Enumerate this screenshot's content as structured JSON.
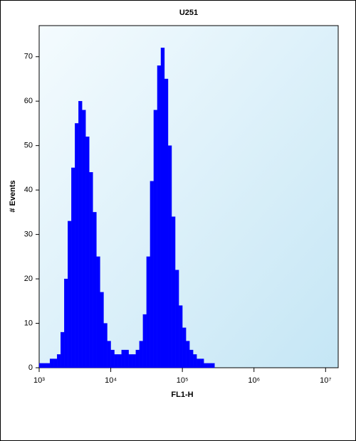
{
  "chart_data": {
    "type": "histogram",
    "title": "U251",
    "x_label": "FL1-H",
    "y_label": "# Events",
    "color": "#0000ff",
    "log_x": true,
    "bins": [
      1000,
      1122,
      1259,
      1413,
      1585,
      1778,
      1995,
      2239,
      2512,
      2818,
      3162,
      3548,
      3981,
      4467,
      5012,
      5623,
      6310,
      7079,
      7943,
      8913,
      10000,
      11220,
      12590,
      14130,
      15850,
      17780,
      19950,
      22390,
      25120,
      28180,
      31620,
      35480,
      39810,
      44670,
      50120,
      56230,
      63100,
      70790,
      79430,
      89130,
      100000,
      112200,
      125900,
      141300,
      158500,
      177800,
      199500,
      223900,
      251200,
      281800,
      316200,
      354800,
      398100,
      446700,
      501200,
      562300,
      631000,
      707900,
      794300,
      891300,
      1000000
    ],
    "values": [
      1,
      1,
      1,
      2,
      2,
      3,
      8,
      20,
      33,
      45,
      55,
      60,
      58,
      52,
      44,
      35,
      25,
      17,
      10,
      6,
      4,
      3,
      3,
      4,
      4,
      3,
      3,
      4,
      6,
      12,
      25,
      42,
      58,
      68,
      72,
      65,
      50,
      34,
      22,
      14,
      9,
      6,
      4,
      3,
      2,
      2,
      1,
      1,
      1,
      0,
      0,
      0,
      0,
      0,
      0,
      0,
      0,
      0,
      0,
      0
    ],
    "xlim": [
      1000,
      15000000
    ],
    "ylim": [
      0,
      77
    ],
    "xticks": [
      {
        "value": 1000,
        "label": "10³"
      },
      {
        "value": 10000,
        "label": "10⁴"
      },
      {
        "value": 100000,
        "label": "10⁵"
      },
      {
        "value": 1000000,
        "label": "10⁶"
      },
      {
        "value": 10000000,
        "label": "10⁷"
      }
    ],
    "yticks": [
      0,
      10,
      20,
      30,
      40,
      50,
      60,
      70
    ]
  }
}
